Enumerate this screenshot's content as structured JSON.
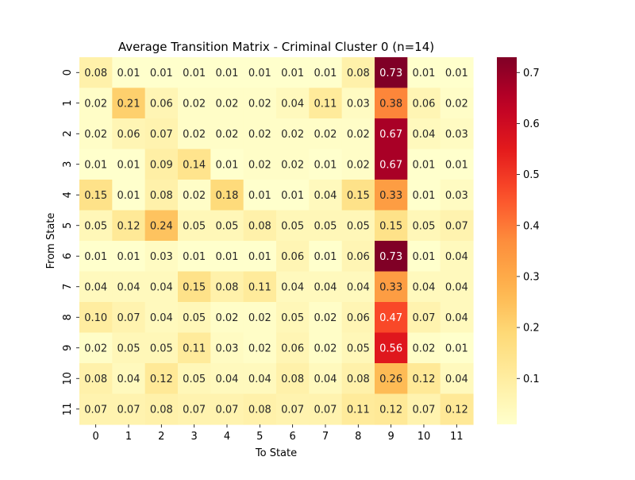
{
  "chart_data": {
    "type": "heatmap",
    "title": "Average Transition Matrix - Criminal Cluster 0 (n=14)",
    "xlabel": "To State",
    "ylabel": "From State",
    "x_categories": [
      "0",
      "1",
      "2",
      "3",
      "4",
      "5",
      "6",
      "7",
      "8",
      "9",
      "10",
      "11"
    ],
    "y_categories": [
      "0",
      "1",
      "2",
      "3",
      "4",
      "5",
      "6",
      "7",
      "8",
      "9",
      "10",
      "11"
    ],
    "values": [
      [
        0.08,
        0.01,
        0.01,
        0.01,
        0.01,
        0.01,
        0.01,
        0.01,
        0.08,
        0.73,
        0.01,
        0.01
      ],
      [
        0.02,
        0.21,
        0.06,
        0.02,
        0.02,
        0.02,
        0.04,
        0.11,
        0.03,
        0.38,
        0.06,
        0.02
      ],
      [
        0.02,
        0.06,
        0.07,
        0.02,
        0.02,
        0.02,
        0.02,
        0.02,
        0.02,
        0.67,
        0.04,
        0.03
      ],
      [
        0.01,
        0.01,
        0.09,
        0.14,
        0.01,
        0.02,
        0.02,
        0.01,
        0.02,
        0.67,
        0.01,
        0.01
      ],
      [
        0.15,
        0.01,
        0.08,
        0.02,
        0.18,
        0.01,
        0.01,
        0.04,
        0.15,
        0.33,
        0.01,
        0.03
      ],
      [
        0.05,
        0.12,
        0.24,
        0.05,
        0.05,
        0.08,
        0.05,
        0.05,
        0.05,
        0.15,
        0.05,
        0.07
      ],
      [
        0.01,
        0.01,
        0.03,
        0.01,
        0.01,
        0.01,
        0.06,
        0.01,
        0.06,
        0.73,
        0.01,
        0.04
      ],
      [
        0.04,
        0.04,
        0.04,
        0.15,
        0.08,
        0.11,
        0.04,
        0.04,
        0.04,
        0.33,
        0.04,
        0.04
      ],
      [
        0.1,
        0.07,
        0.04,
        0.05,
        0.02,
        0.02,
        0.05,
        0.02,
        0.06,
        0.47,
        0.07,
        0.04
      ],
      [
        0.02,
        0.05,
        0.05,
        0.11,
        0.03,
        0.02,
        0.06,
        0.02,
        0.05,
        0.56,
        0.02,
        0.01
      ],
      [
        0.08,
        0.04,
        0.12,
        0.05,
        0.04,
        0.04,
        0.08,
        0.04,
        0.08,
        0.26,
        0.12,
        0.04
      ],
      [
        0.07,
        0.07,
        0.08,
        0.07,
        0.07,
        0.08,
        0.07,
        0.07,
        0.11,
        0.12,
        0.07,
        0.12
      ]
    ],
    "colormap": "YlOrRd",
    "colorbar_range": [
      0.01,
      0.73
    ],
    "colorbar_ticks": [
      "0.1",
      "0.2",
      "0.3",
      "0.4",
      "0.5",
      "0.6",
      "0.7"
    ],
    "annotations": true,
    "grid": false
  }
}
